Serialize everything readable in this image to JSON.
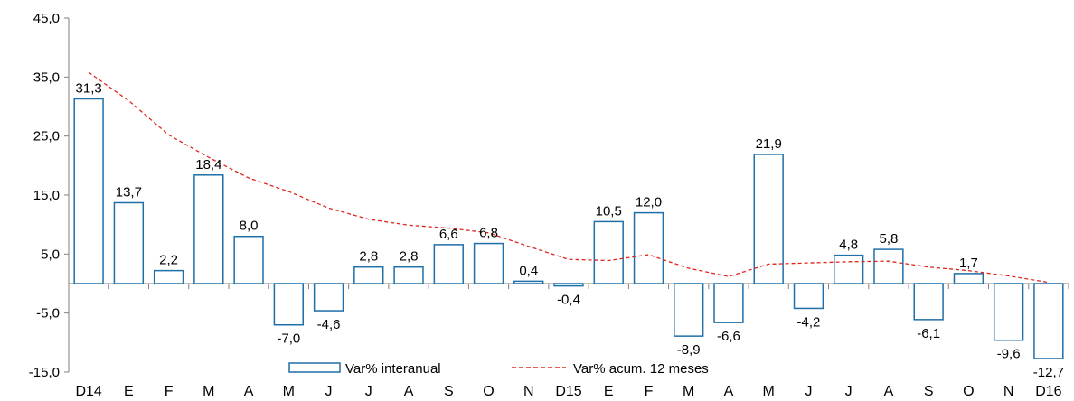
{
  "chart_data": {
    "type": "bar",
    "categories": [
      "D14",
      "E",
      "F",
      "M",
      "A",
      "M",
      "J",
      "J",
      "A",
      "S",
      "O",
      "N",
      "D15",
      "E",
      "F",
      "M",
      "A",
      "M",
      "J",
      "J",
      "A",
      "S",
      "O",
      "N",
      "D16"
    ],
    "series": [
      {
        "name": "Var% interanual",
        "type": "bar",
        "values": [
          31.3,
          13.7,
          2.2,
          18.4,
          8.0,
          -7.0,
          -4.6,
          2.8,
          2.8,
          6.6,
          6.8,
          0.4,
          -0.4,
          10.5,
          12.0,
          -8.9,
          -6.6,
          21.9,
          -4.2,
          4.8,
          5.8,
          -6.1,
          1.7,
          -9.6,
          -12.7
        ],
        "labels": [
          "31,3",
          "13,7",
          "2,2",
          "18,4",
          "8,0",
          "-7,0",
          "-4,6",
          "2,8",
          "2,8",
          "6,6",
          "6,8",
          "0,4",
          "-0,4",
          "10,5",
          "12,0",
          "-8,9",
          "-6,6",
          "21,9",
          "-4,2",
          "4,8",
          "5,8",
          "-6,1",
          "1,7",
          "-9,6",
          "-12,7"
        ]
      },
      {
        "name": "Var% acum. 12 meses",
        "type": "line",
        "values": [
          35.8,
          31.0,
          25.2,
          21.4,
          17.9,
          15.6,
          12.8,
          10.9,
          9.9,
          9.4,
          8.6,
          6.3,
          4.1,
          3.9,
          4.9,
          2.6,
          1.2,
          3.3,
          3.5,
          3.7,
          3.8,
          2.8,
          2.2,
          1.3,
          0.2
        ]
      }
    ],
    "ylim": [
      -15,
      45
    ],
    "yticks": [
      -15,
      -5,
      5,
      15,
      25,
      35,
      45
    ],
    "ytick_labels": [
      "-15,0",
      "-5,0",
      "5,0",
      "15,0",
      "25,0",
      "35,0",
      "45,0"
    ],
    "legend_position": "bottom-center",
    "grid": false,
    "colors": {
      "bar_stroke": "#1f6fa8",
      "bar_fill": "#ffffff",
      "line": "#e0241b",
      "axis": "#7f7f7f"
    }
  }
}
